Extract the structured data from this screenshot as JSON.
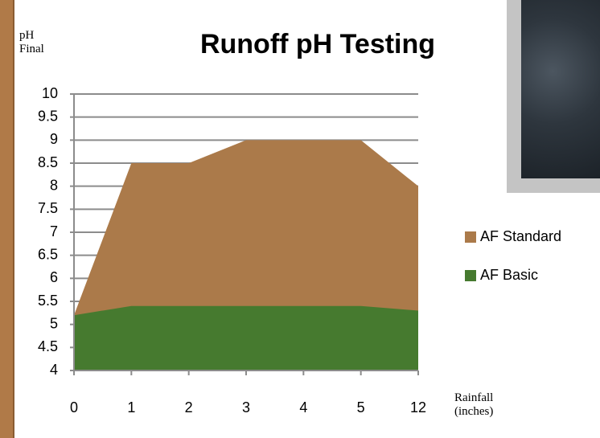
{
  "chart_data": {
    "type": "area",
    "title": "Runoff pH Testing",
    "ylabel": "pH Final",
    "xlabel": "Rainfall (inches)",
    "categories": [
      "0",
      "1",
      "2",
      "3",
      "4",
      "5",
      "12"
    ],
    "series": [
      {
        "name": "AF Standard",
        "color": "#ab7a4a",
        "values": [
          5.2,
          8.5,
          8.5,
          9,
          9,
          9,
          8
        ]
      },
      {
        "name": "AF Basic",
        "color": "#467a2f",
        "values": [
          5.2,
          5.4,
          5.4,
          5.4,
          5.4,
          5.4,
          5.3
        ]
      }
    ],
    "ylim": [
      4,
      10
    ],
    "yticks": [
      4,
      4.5,
      5,
      5.5,
      6,
      6.5,
      7,
      7.5,
      8,
      8.5,
      9,
      9.5,
      10
    ],
    "grid": true,
    "legend": "right"
  }
}
